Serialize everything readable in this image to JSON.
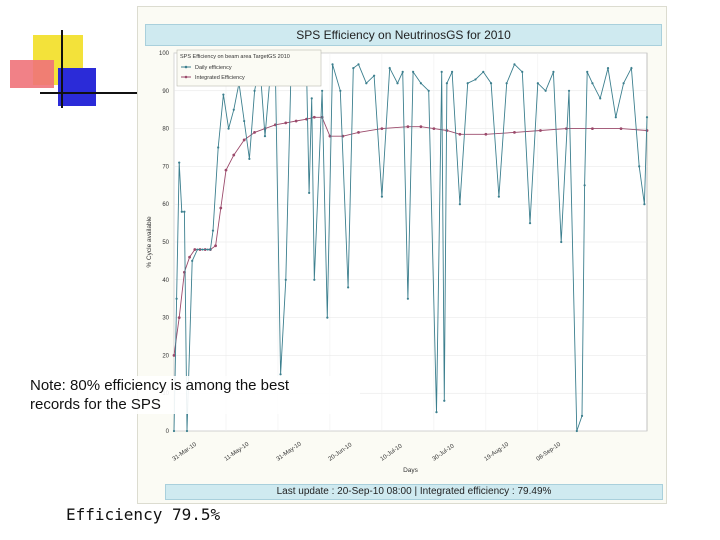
{
  "slide": {
    "note_line1": "Note: 80% efficiency is among the best",
    "note_line2": "records for the SPS",
    "efficiency_caption": "Efficiency 79.5%"
  },
  "figure": {
    "title": "SPS Efficiency on NeutrinosGS for 2010",
    "footer": "Last update : 20-Sep-10 08:00 | Integrated efficiency : 79.49%"
  },
  "colors": {
    "daily": "#3c7f8e",
    "integrated": "#9b4a6b",
    "title_bg": "#cfeaf0"
  },
  "chart_data": {
    "type": "line",
    "title": "SPS Efficiency on NeutrinosGS for 2010",
    "xlabel": "Days",
    "ylabel": "% Cycle available",
    "ylim": [
      0,
      100
    ],
    "yticks": [
      0,
      10,
      20,
      30,
      40,
      50,
      60,
      70,
      80,
      90,
      100
    ],
    "xtick_labels": [
      "31-Mar-10",
      "11-May-10",
      "31-May-10",
      "20-Jun-10",
      "10-Jul-10",
      "30-Jul-10",
      "19-Aug-10",
      "08-Sep-10"
    ],
    "xtick_days": [
      0,
      20,
      40,
      60,
      80,
      100,
      120,
      140
    ],
    "x_start": "2010-03-22",
    "x_end": "2010-09-20",
    "grid": true,
    "legend": {
      "position": "top-left",
      "title": "SPS Efficiency on beam area TargetGS 2010",
      "entries": [
        "Daily efficiency",
        "Integrated Efficiency"
      ]
    },
    "series": [
      {
        "name": "Daily efficiency",
        "x": [
          "2010-03-22",
          "2010-03-23",
          "2010-03-24",
          "2010-03-25",
          "2010-03-26",
          "2010-03-27",
          "2010-03-29",
          "2010-03-31",
          "2010-04-02",
          "2010-04-04",
          "2010-04-05",
          "2010-04-06",
          "2010-04-08",
          "2010-04-10",
          "2010-04-12",
          "2010-04-14",
          "2010-04-16",
          "2010-04-18",
          "2010-04-20",
          "2010-04-22",
          "2010-04-24",
          "2010-04-26",
          "2010-04-28",
          "2010-04-30",
          "2010-05-02",
          "2010-05-04",
          "2010-05-06",
          "2010-05-08",
          "2010-05-10",
          "2010-05-12",
          "2010-05-13",
          "2010-05-14",
          "2010-05-15",
          "2010-05-18",
          "2010-05-20",
          "2010-05-22",
          "2010-05-25",
          "2010-05-28",
          "2010-05-30",
          "2010-06-01",
          "2010-06-04",
          "2010-06-07",
          "2010-06-10",
          "2010-06-13",
          "2010-06-16",
          "2010-06-18",
          "2010-06-20",
          "2010-06-22",
          "2010-06-25",
          "2010-06-28",
          "2010-07-01",
          "2010-07-03",
          "2010-07-04",
          "2010-07-05",
          "2010-07-07",
          "2010-07-10",
          "2010-07-13",
          "2010-07-16",
          "2010-07-19",
          "2010-07-22",
          "2010-07-25",
          "2010-07-28",
          "2010-07-31",
          "2010-08-03",
          "2010-08-06",
          "2010-08-09",
          "2010-08-12",
          "2010-08-15",
          "2010-08-18",
          "2010-08-21",
          "2010-08-24",
          "2010-08-26",
          "2010-08-27",
          "2010-08-28",
          "2010-08-30",
          "2010-09-02",
          "2010-09-05",
          "2010-09-08",
          "2010-09-11",
          "2010-09-14",
          "2010-09-17",
          "2010-09-19",
          "2010-09-20"
        ],
        "y": [
          0,
          35,
          71,
          58,
          58,
          0,
          45,
          48,
          48,
          48,
          48,
          53,
          75,
          89,
          80,
          85,
          92,
          82,
          72,
          90,
          97,
          78,
          94,
          95,
          15,
          40,
          95,
          93,
          94,
          96,
          63,
          88,
          40,
          90,
          30,
          97,
          90,
          38,
          96,
          97,
          92,
          94,
          62,
          96,
          92,
          95,
          35,
          95,
          92,
          90,
          5,
          95,
          8,
          92,
          95,
          60,
          92,
          93,
          95,
          92,
          62,
          92,
          97,
          95,
          55,
          92,
          90,
          95,
          50,
          90,
          0,
          4,
          65,
          95,
          92,
          88,
          96,
          83,
          92,
          96,
          70,
          60,
          83
        ]
      },
      {
        "name": "Integrated Efficiency",
        "x": [
          "2010-03-22",
          "2010-03-24",
          "2010-03-26",
          "2010-03-28",
          "2010-03-30",
          "2010-04-01",
          "2010-04-03",
          "2010-04-05",
          "2010-04-07",
          "2010-04-09",
          "2010-04-11",
          "2010-04-14",
          "2010-04-18",
          "2010-04-22",
          "2010-04-26",
          "2010-04-30",
          "2010-05-04",
          "2010-05-08",
          "2010-05-12",
          "2010-05-15",
          "2010-05-18",
          "2010-05-21",
          "2010-05-26",
          "2010-06-01",
          "2010-06-10",
          "2010-06-20",
          "2010-06-25",
          "2010-06-30",
          "2010-07-05",
          "2010-07-10",
          "2010-07-20",
          "2010-07-31",
          "2010-08-10",
          "2010-08-20",
          "2010-08-30",
          "2010-09-10",
          "2010-09-20"
        ],
        "y": [
          20,
          30,
          42,
          46,
          48,
          48,
          48,
          48,
          49,
          59,
          69,
          73,
          77,
          79,
          80,
          81,
          81.5,
          82,
          82.5,
          83,
          83,
          78,
          78,
          79,
          80,
          80.5,
          80.5,
          80,
          79.5,
          78.5,
          78.5,
          79,
          79.5,
          80,
          80,
          80,
          79.5
        ]
      }
    ]
  }
}
